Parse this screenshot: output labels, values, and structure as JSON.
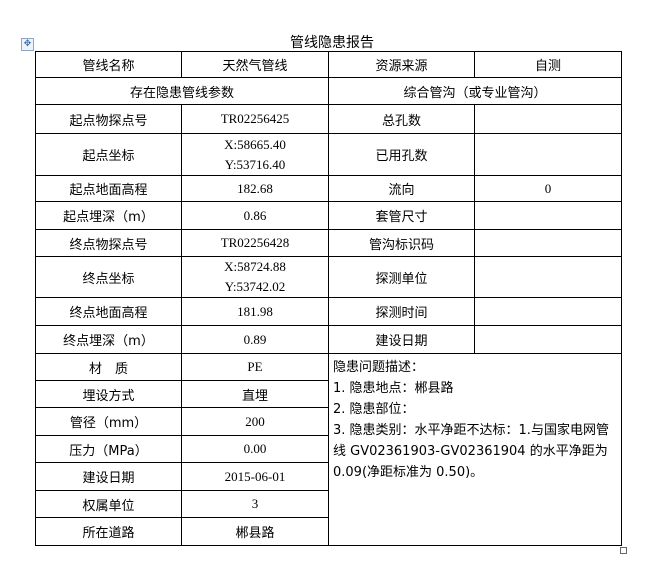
{
  "title": "管线隐患报告",
  "row1": {
    "c1": "管线名称",
    "c2": "天然气管线",
    "c3": "资源来源",
    "c4": "自测"
  },
  "row2": {
    "left": "存在隐患管线参数",
    "right": "综合管沟（或专业管沟）"
  },
  "left_rows": [
    {
      "label": "起点物探点号",
      "value": "TR02256425"
    },
    {
      "label": "起点坐标",
      "value_x": "X:58665.40",
      "value_y": "Y:53716.40"
    },
    {
      "label": "起点地面高程",
      "value": "182.68"
    },
    {
      "label": "起点埋深（m）",
      "value": "0.86"
    },
    {
      "label": "终点物探点号",
      "value": "TR02256428"
    },
    {
      "label": "终点坐标",
      "value_x": "X:58724.88",
      "value_y": "Y:53742.02"
    },
    {
      "label": "终点地面高程",
      "value": "181.98"
    },
    {
      "label": "终点埋深（m）",
      "value": "0.89"
    },
    {
      "label": "材　质",
      "value": "PE"
    },
    {
      "label": "埋设方式",
      "value": "直埋"
    },
    {
      "label": "管径（mm）",
      "value": "200"
    },
    {
      "label": "压力（MPa）",
      "value": "0.00"
    },
    {
      "label": "建设日期",
      "value": "2015-06-01"
    },
    {
      "label": "权属单位",
      "value": "3"
    },
    {
      "label": "所在道路",
      "value": "郴县路"
    }
  ],
  "right_rows": [
    {
      "label": "总孔数",
      "value": ""
    },
    {
      "label": "已用孔数",
      "value": ""
    },
    {
      "label": "流向",
      "value": "0"
    },
    {
      "label": "套管尺寸",
      "value": ""
    },
    {
      "label": "管沟标识码",
      "value": ""
    },
    {
      "label": "探测单位",
      "value": ""
    },
    {
      "label": "探测时间",
      "value": ""
    },
    {
      "label": "建设日期",
      "value": ""
    }
  ],
  "description": {
    "heading": "隐患问题描述：",
    "line1": "1. 隐患地点：郴县路",
    "line2": "2. 隐患部位：",
    "line3": "3. 隐患类别：水平净距不达标：1.与国家电网管线 GV02361903-GV02361904 的水平净距为 0.09(净距标准为 0.50)。"
  }
}
